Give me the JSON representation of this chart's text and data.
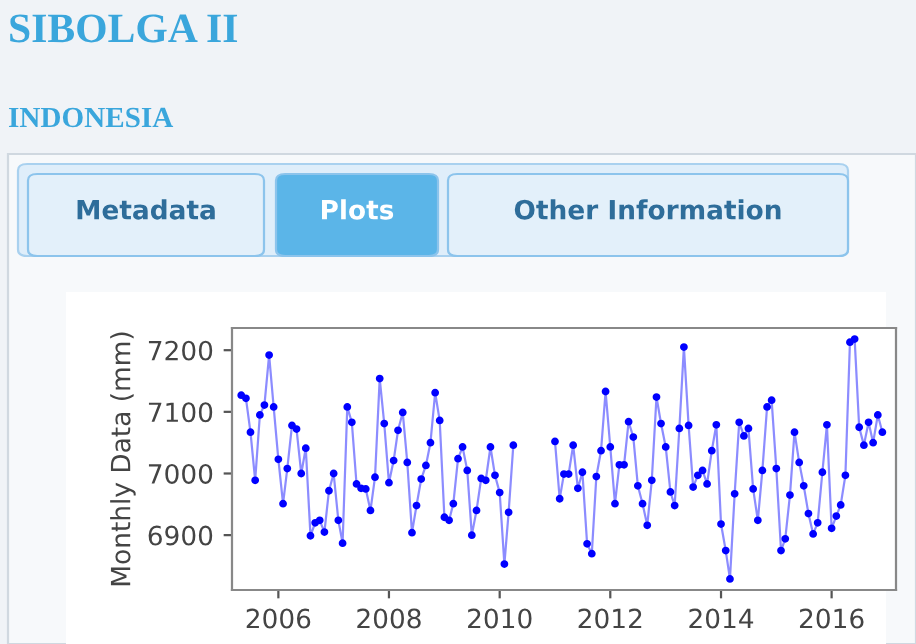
{
  "chart_data": {
    "type": "line",
    "title": "SIBOLGA II",
    "subtitle": "INDONESIA",
    "annotations": [
      "Metadata",
      "Plots",
      "Other Information"
    ],
    "ylabel": "Monthly Data (mm)",
    "x": [
      "2005-05",
      "2005-06",
      "2005-07",
      "2005-08",
      "2005-09",
      "2005-10",
      "2005-11",
      "2005-12",
      "2006-01",
      "2006-02",
      "2006-03",
      "2006-04",
      "2006-05",
      "2006-06",
      "2006-07",
      "2006-08",
      "2006-09",
      "2006-10",
      "2006-11",
      "2006-12",
      "2007-01",
      "2007-02",
      "2007-03",
      "2007-04",
      "2007-05",
      "2007-06",
      "2007-07",
      "2007-08",
      "2007-09",
      "2007-10",
      "2007-11",
      "2007-12",
      "2008-01",
      "2008-02",
      "2008-03",
      "2008-04",
      "2008-05",
      "2008-06",
      "2008-07",
      "2008-08",
      "2008-09",
      "2008-10",
      "2008-11",
      "2008-12",
      "2009-01",
      "2009-02",
      "2009-03",
      "2009-04",
      "2009-05",
      "2009-06",
      "2009-07",
      "2009-08",
      "2009-09",
      "2009-10",
      "2009-11",
      "2009-12",
      "2010-01",
      "2010-02",
      "2010-03",
      "2010-04",
      "2010-05",
      "2010-06",
      "2010-07",
      "2010-08",
      "2010-09",
      "2010-10",
      "2010-11",
      "2010-12",
      "2011-01",
      "2011-02",
      "2011-03",
      "2011-04",
      "2011-05",
      "2011-06",
      "2011-07",
      "2011-08",
      "2011-09",
      "2011-10",
      "2011-11",
      "2011-12",
      "2012-01",
      "2012-02",
      "2012-03",
      "2012-04",
      "2012-05",
      "2012-06",
      "2012-07",
      "2012-08",
      "2012-09",
      "2012-10",
      "2012-11",
      "2012-12",
      "2013-01",
      "2013-02",
      "2013-03",
      "2013-04",
      "2013-05",
      "2013-06",
      "2013-07",
      "2013-08",
      "2013-09",
      "2013-10",
      "2013-11",
      "2013-12",
      "2014-01",
      "2014-02",
      "2014-03",
      "2014-04",
      "2014-05",
      "2014-06",
      "2014-07",
      "2014-08",
      "2014-09",
      "2014-10",
      "2014-11",
      "2014-12",
      "2015-01",
      "2015-02",
      "2015-03",
      "2015-04",
      "2015-05",
      "2015-06",
      "2015-07",
      "2015-08",
      "2015-09",
      "2015-10",
      "2015-11",
      "2015-12",
      "2016-01",
      "2016-02",
      "2016-03",
      "2016-04",
      "2016-05",
      "2016-06",
      "2016-07",
      "2016-08",
      "2016-09",
      "2016-10",
      "2016-11",
      "2016-12"
    ],
    "series": [
      {
        "color": "#0000ff",
        "values": [
          7127,
          7122,
          7067,
          6989,
          7095,
          7111,
          7192,
          7108,
          7023,
          6951,
          7008,
          7078,
          7072,
          7000,
          7041,
          6899,
          6920,
          6924,
          6905,
          6972,
          7000,
          6924,
          6887,
          7108,
          7083,
          6983,
          6976,
          6975,
          6940,
          6994,
          7154,
          7081,
          6985,
          7021,
          7070,
          7099,
          7018,
          6904,
          6948,
          6991,
          7013,
          7050,
          7131,
          7086,
          6929,
          6924,
          6951,
          7024,
          7043,
          7005,
          6900,
          6940,
          6992,
          6989,
          7043,
          6997,
          6969,
          6853,
          6937,
          7046,
          null,
          null,
          null,
          null,
          null,
          null,
          null,
          null,
          7052,
          6959,
          6999,
          6999,
          7046,
          6976,
          7002,
          6886,
          6870,
          6995,
          7037,
          7133,
          7043,
          6951,
          7014,
          7014,
          7084,
          7059,
          6980,
          6951,
          6916,
          6989,
          7124,
          7081,
          7043,
          6970,
          6948,
          7073,
          7205,
          7078,
          6978,
          6997,
          7005,
          6983,
          7037,
          7079,
          6918,
          6875,
          6829,
          6967,
          7083,
          7061,
          7073,
          6975,
          6924,
          7005,
          7108,
          7119,
          7008,
          6875,
          6894,
          6965,
          7067,
          7018,
          6980,
          6935,
          6902,
          6920,
          7002,
          7079,
          6911,
          6931,
          6949,
          6997,
          7213,
          7218,
          7075,
          7046,
          7083,
          7050,
          7095,
          7067
        ]
      }
    ],
    "xlim": [
      "2005-03",
      "2017-03"
    ],
    "xticks": [
      "2006",
      "2008",
      "2010",
      "2012",
      "2014",
      "2016"
    ],
    "ylim": [
      6811,
      7236
    ],
    "yticks": [
      6900,
      7000,
      7100,
      7200
    ],
    "marker": "circle",
    "line_style": "solid",
    "grid": false,
    "legend": false
  }
}
